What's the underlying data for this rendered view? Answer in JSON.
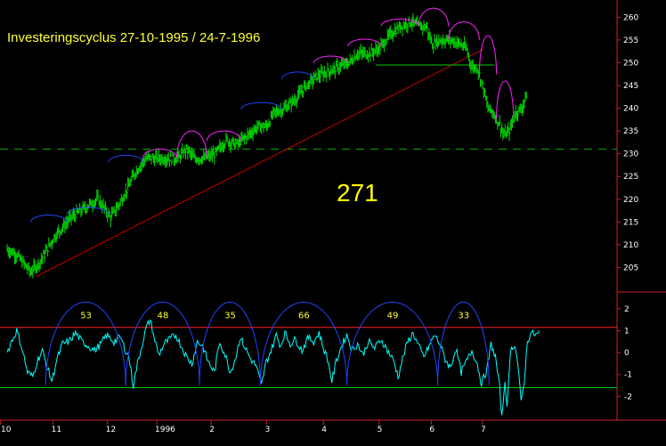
{
  "chart_data": [
    {
      "type": "ohlc",
      "title": "Investeringscyclus 27-10-1995 / 24-7-1996",
      "annotation": "271",
      "ylim": [
        200,
        263
      ],
      "y_ticks": [
        205,
        210,
        215,
        220,
        225,
        230,
        235,
        240,
        245,
        250,
        255,
        260
      ],
      "x_ticks": [
        "10",
        "11",
        "12",
        "1996",
        "2",
        "3",
        "4",
        "5",
        "6",
        "7"
      ],
      "price_path": [
        [
          0,
          209
        ],
        [
          8,
          208
        ],
        [
          22,
          204
        ],
        [
          30,
          206
        ],
        [
          45,
          212
        ],
        [
          60,
          216
        ],
        [
          72,
          218
        ],
        [
          85,
          220
        ],
        [
          97,
          216
        ],
        [
          105,
          219
        ],
        [
          112,
          222
        ],
        [
          120,
          226
        ],
        [
          130,
          229
        ],
        [
          140,
          229
        ],
        [
          150,
          229
        ],
        [
          160,
          229
        ],
        [
          168,
          231
        ],
        [
          175,
          229
        ],
        [
          185,
          229
        ],
        [
          195,
          230
        ],
        [
          205,
          233
        ],
        [
          215,
          232
        ],
        [
          225,
          234
        ],
        [
          235,
          236
        ],
        [
          243,
          236
        ],
        [
          250,
          239
        ],
        [
          260,
          240
        ],
        [
          270,
          242
        ],
        [
          280,
          245
        ],
        [
          290,
          247
        ],
        [
          300,
          248
        ],
        [
          310,
          249
        ],
        [
          320,
          250
        ],
        [
          328,
          252
        ],
        [
          338,
          252
        ],
        [
          348,
          253
        ],
        [
          358,
          256
        ],
        [
          368,
          258
        ],
        [
          378,
          259
        ],
        [
          385,
          258
        ],
        [
          392,
          258
        ],
        [
          398,
          254
        ],
        [
          405,
          255
        ],
        [
          415,
          255
        ],
        [
          425,
          254
        ],
        [
          430,
          253
        ],
        [
          435,
          249
        ],
        [
          440,
          249
        ],
        [
          445,
          245
        ],
        [
          450,
          240
        ],
        [
          455,
          239
        ],
        [
          462,
          236
        ],
        [
          465,
          234
        ],
        [
          470,
          235
        ],
        [
          476,
          239
        ],
        [
          482,
          240
        ],
        [
          486,
          243
        ]
      ],
      "support_line": {
        "level": 231,
        "color": "#00aa00"
      },
      "neckline": {
        "level": 249.5,
        "from": 345,
        "to": 456,
        "color": "#00cc00"
      },
      "trend_line": {
        "from": [
          27,
          203
        ],
        "to": [
          446,
          253
        ],
        "color": "#cc0000"
      },
      "cycles": [
        {
          "from": 22,
          "to": 56,
          "peak": 211,
          "color": "#2244ff"
        },
        {
          "from": 56,
          "to": 95,
          "peak": 216.5,
          "color": "#2244ff"
        },
        {
          "from": 95,
          "to": 127,
          "peak": 223.5,
          "color": "#2244ff"
        },
        {
          "from": 127,
          "to": 159,
          "peak": 231,
          "color": "#ff22ff"
        },
        {
          "from": 159,
          "to": 187,
          "peak": 235,
          "color": "#ff22ff"
        },
        {
          "from": 187,
          "to": 219,
          "peak": 235,
          "color": "#ff22ff"
        },
        {
          "from": 219,
          "to": 257,
          "peak": 235,
          "color": "#2244ff"
        },
        {
          "from": 257,
          "to": 287,
          "peak": 241,
          "color": "#2244ff"
        },
        {
          "from": 287,
          "to": 319,
          "peak": 247,
          "color": "#ff22ff"
        },
        {
          "from": 319,
          "to": 350,
          "peak": 252.5,
          "color": "#ff22ff"
        },
        {
          "from": 350,
          "to": 385,
          "peak": 258,
          "color": "#ff22ff"
        },
        {
          "from": 385,
          "to": 413,
          "peak": 262,
          "color": "#ff22ff"
        },
        {
          "from": 413,
          "to": 442,
          "peak": 259,
          "color": "#ff22ff"
        },
        {
          "from": 442,
          "to": 458,
          "peak": 256,
          "color": "#ff22ff"
        },
        {
          "from": 458,
          "to": 474,
          "peak": 246,
          "color": "#ff22ff"
        }
      ],
      "bar_color": "#00dd00"
    },
    {
      "type": "line",
      "ylim": [
        -3,
        2.6
      ],
      "y_ticks": [
        -2,
        -1,
        0,
        1,
        2
      ],
      "upper_band": {
        "level": 1.15,
        "color": "#ff2222"
      },
      "lower_band": {
        "level": -1.6,
        "color": "#00cc00"
      },
      "line_color": "#00ffff",
      "osc_path": [
        [
          0,
          0
        ],
        [
          4,
          0.5
        ],
        [
          9,
          1.0
        ],
        [
          14,
          0.2
        ],
        [
          19,
          -0.9
        ],
        [
          24,
          -1.1
        ],
        [
          28,
          -0.4
        ],
        [
          33,
          0.1
        ],
        [
          37,
          -0.6
        ],
        [
          42,
          -1.3
        ],
        [
          46,
          -0.4
        ],
        [
          52,
          0.4
        ],
        [
          58,
          0.5
        ],
        [
          64,
          0.9
        ],
        [
          70,
          0.5
        ],
        [
          76,
          0.3
        ],
        [
          82,
          0.1
        ],
        [
          88,
          0.4
        ],
        [
          93,
          0.8
        ],
        [
          100,
          0.5
        ],
        [
          106,
          0.7
        ],
        [
          110,
          0.2
        ],
        [
          114,
          -0.2
        ],
        [
          118,
          -1.5
        ],
        [
          122,
          -0.5
        ],
        [
          126,
          0.3
        ],
        [
          130,
          1.1
        ],
        [
          134,
          1.5
        ],
        [
          138,
          0.6
        ],
        [
          142,
          -0.1
        ],
        [
          147,
          0.4
        ],
        [
          152,
          0.6
        ],
        [
          158,
          0.8
        ],
        [
          163,
          0.3
        ],
        [
          168,
          -0.2
        ],
        [
          173,
          -0.5
        ],
        [
          178,
          0.5
        ],
        [
          183,
          0.3
        ],
        [
          188,
          -0.4
        ],
        [
          194,
          -0.9
        ],
        [
          199,
          0.5
        ],
        [
          204,
          -0.1
        ],
        [
          209,
          -0.9
        ],
        [
          214,
          -0.2
        ],
        [
          218,
          0.7
        ],
        [
          223,
          0.2
        ],
        [
          228,
          -0.3
        ],
        [
          233,
          -0.6
        ],
        [
          238,
          -1.5
        ],
        [
          242,
          -0.5
        ],
        [
          247,
          0.1
        ],
        [
          252,
          0.8
        ],
        [
          256,
          0.3
        ],
        [
          260,
          0.9
        ],
        [
          265,
          0.4
        ],
        [
          270,
          0.6
        ],
        [
          276,
          0.1
        ],
        [
          282,
          0.7
        ],
        [
          287,
          0.5
        ],
        [
          292,
          0.9
        ],
        [
          296,
          0.2
        ],
        [
          300,
          -0.3
        ],
        [
          304,
          -1.3
        ],
        [
          308,
          -0.4
        ],
        [
          313,
          0.3
        ],
        [
          318,
          0.8
        ],
        [
          323,
          0.1
        ],
        [
          328,
          0.4
        ],
        [
          333,
          -0.1
        ],
        [
          338,
          0.5
        ],
        [
          344,
          0.2
        ],
        [
          350,
          0.6
        ],
        [
          356,
          0.1
        ],
        [
          362,
          -0.4
        ],
        [
          366,
          -1.1
        ],
        [
          370,
          -0.3
        ],
        [
          375,
          0.5
        ],
        [
          380,
          0.9
        ],
        [
          385,
          0.3
        ],
        [
          390,
          -0.2
        ],
        [
          395,
          0.3
        ],
        [
          400,
          0.8
        ],
        [
          405,
          0.4
        ],
        [
          410,
          -0.3
        ],
        [
          415,
          -0.7
        ],
        [
          420,
          0.2
        ],
        [
          425,
          -0.9
        ],
        [
          430,
          -0.4
        ],
        [
          435,
          0.1
        ],
        [
          440,
          -0.5
        ],
        [
          444,
          -1.4
        ],
        [
          449,
          -0.8
        ],
        [
          453,
          0.4
        ],
        [
          457,
          -0.2
        ],
        [
          461,
          -1.6
        ],
        [
          463,
          -3.0
        ],
        [
          466,
          -1.2
        ],
        [
          468,
          -2.6
        ],
        [
          471,
          0.1
        ],
        [
          475,
          0.4
        ],
        [
          478,
          -0.5
        ],
        [
          481,
          -2.3
        ],
        [
          484,
          -1.3
        ],
        [
          487,
          0.5
        ],
        [
          490,
          0.9
        ],
        [
          495,
          0.8
        ],
        [
          498,
          0.9
        ]
      ],
      "cycles": [
        {
          "from": 36,
          "to": 111,
          "label": "53"
        },
        {
          "from": 111,
          "to": 180,
          "label": "48"
        },
        {
          "from": 180,
          "to": 237,
          "label": "35"
        },
        {
          "from": 237,
          "to": 318,
          "label": "66"
        },
        {
          "from": 318,
          "to": 403,
          "label": "49"
        },
        {
          "from": 403,
          "to": 451,
          "label": "33"
        }
      ],
      "cycle_color": "#2244ff"
    }
  ]
}
